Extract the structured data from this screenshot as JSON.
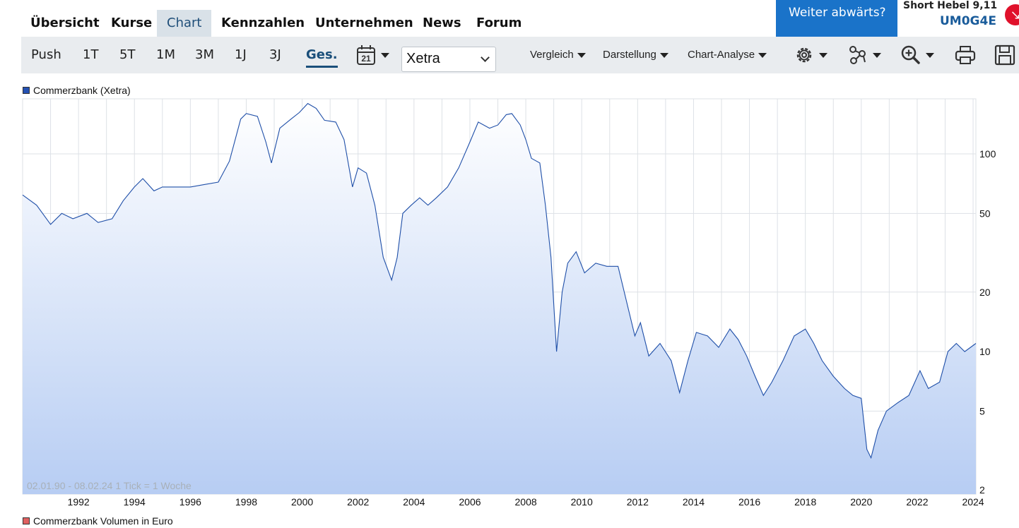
{
  "nav": {
    "tabs": [
      {
        "label": "Übersicht"
      },
      {
        "label": "Kurse"
      },
      {
        "label": "Chart",
        "active": true
      },
      {
        "label": "Kennzahlen"
      },
      {
        "label": "Unternehmen"
      },
      {
        "label": "News"
      },
      {
        "label": "Forum"
      }
    ],
    "promo_text": "Weiter abwärts?",
    "product_title": "Short Hebel 9,11",
    "product_code": "UM0G4E"
  },
  "toolbar": {
    "ranges": [
      "Push",
      "1T",
      "5T",
      "1M",
      "3M",
      "1J",
      "3J",
      "Ges."
    ],
    "active_range": "Ges.",
    "calendar_day": "21",
    "exchange_selected": "Xetra",
    "menus": [
      "Vergleich",
      "Darstellung",
      "Chart-Analyse"
    ],
    "icons": [
      "settings-icon",
      "indicators-icon",
      "zoom-icon",
      "print-icon",
      "save-icon"
    ]
  },
  "chart_data": {
    "type": "area",
    "series": [
      {
        "name": "Commerzbank (Xetra)",
        "color": "#1f4fa8",
        "points": [
          [
            1990.0,
            62
          ],
          [
            1990.5,
            55
          ],
          [
            1991.0,
            44
          ],
          [
            1991.4,
            50
          ],
          [
            1991.8,
            47
          ],
          [
            1992.3,
            50
          ],
          [
            1992.7,
            45
          ],
          [
            1993.2,
            47
          ],
          [
            1993.6,
            58
          ],
          [
            1994.0,
            68
          ],
          [
            1994.3,
            75
          ],
          [
            1994.7,
            65
          ],
          [
            1995.0,
            68
          ],
          [
            1995.5,
            68
          ],
          [
            1996.0,
            68
          ],
          [
            1996.5,
            70
          ],
          [
            1997.0,
            72
          ],
          [
            1997.4,
            92
          ],
          [
            1997.8,
            150
          ],
          [
            1998.0,
            160
          ],
          [
            1998.4,
            155
          ],
          [
            1998.7,
            115
          ],
          [
            1998.9,
            90
          ],
          [
            1999.2,
            135
          ],
          [
            1999.6,
            150
          ],
          [
            1999.9,
            162
          ],
          [
            2000.2,
            180
          ],
          [
            2000.5,
            170
          ],
          [
            2000.8,
            148
          ],
          [
            2001.2,
            145
          ],
          [
            2001.5,
            118
          ],
          [
            2001.8,
            68
          ],
          [
            2002.0,
            85
          ],
          [
            2002.3,
            80
          ],
          [
            2002.6,
            55
          ],
          [
            2002.9,
            30
          ],
          [
            2003.2,
            23
          ],
          [
            2003.4,
            30
          ],
          [
            2003.6,
            50
          ],
          [
            2003.9,
            55
          ],
          [
            2004.2,
            60
          ],
          [
            2004.5,
            55
          ],
          [
            2004.8,
            60
          ],
          [
            2005.2,
            68
          ],
          [
            2005.6,
            85
          ],
          [
            2006.0,
            115
          ],
          [
            2006.3,
            145
          ],
          [
            2006.7,
            135
          ],
          [
            2007.0,
            140
          ],
          [
            2007.3,
            158
          ],
          [
            2007.5,
            160
          ],
          [
            2007.8,
            140
          ],
          [
            2008.0,
            118
          ],
          [
            2008.2,
            95
          ],
          [
            2008.5,
            90
          ],
          [
            2008.7,
            55
          ],
          [
            2008.9,
            30
          ],
          [
            2009.1,
            10
          ],
          [
            2009.3,
            20
          ],
          [
            2009.5,
            28
          ],
          [
            2009.8,
            32
          ],
          [
            2010.1,
            25
          ],
          [
            2010.5,
            28
          ],
          [
            2010.9,
            27
          ],
          [
            2011.3,
            27
          ],
          [
            2011.6,
            18
          ],
          [
            2011.9,
            12
          ],
          [
            2012.1,
            14
          ],
          [
            2012.4,
            9.5
          ],
          [
            2012.8,
            11
          ],
          [
            2013.2,
            9
          ],
          [
            2013.5,
            6.2
          ],
          [
            2013.8,
            9
          ],
          [
            2014.1,
            12.5
          ],
          [
            2014.5,
            12
          ],
          [
            2014.9,
            10.5
          ],
          [
            2015.3,
            13
          ],
          [
            2015.6,
            11.5
          ],
          [
            2015.9,
            9.5
          ],
          [
            2016.2,
            7.5
          ],
          [
            2016.5,
            6
          ],
          [
            2016.8,
            7
          ],
          [
            2017.2,
            9
          ],
          [
            2017.6,
            12
          ],
          [
            2018.0,
            13
          ],
          [
            2018.3,
            11
          ],
          [
            2018.6,
            9
          ],
          [
            2019.0,
            7.5
          ],
          [
            2019.4,
            6.5
          ],
          [
            2019.7,
            6
          ],
          [
            2020.0,
            5.8
          ],
          [
            2020.2,
            3.2
          ],
          [
            2020.35,
            2.9
          ],
          [
            2020.6,
            4
          ],
          [
            2020.9,
            5
          ],
          [
            2021.3,
            5.5
          ],
          [
            2021.7,
            6
          ],
          [
            2022.1,
            8
          ],
          [
            2022.4,
            6.5
          ],
          [
            2022.8,
            7
          ],
          [
            2023.1,
            10
          ],
          [
            2023.4,
            11
          ],
          [
            2023.7,
            10
          ],
          [
            2024.1,
            11
          ]
        ]
      }
    ],
    "x_ticks": [
      "1992",
      "1994",
      "1996",
      "1998",
      "2000",
      "2002",
      "2004",
      "2006",
      "2008",
      "2010",
      "2012",
      "2014",
      "2016",
      "2018",
      "2020",
      "2022",
      "2024"
    ],
    "y_ticks": [
      "100",
      "50",
      "20",
      "10",
      "5",
      "2"
    ],
    "y_scale": "log",
    "xlim": [
      1990.0,
      2024.1
    ],
    "ylim": [
      1.9,
      190
    ],
    "grid": true,
    "range_note": "02.01.90 - 08.02.24   1 Tick = 1 Woche",
    "second_panel_title": "Commerzbank Volumen in Euro",
    "second_panel_color": "#e06060"
  }
}
